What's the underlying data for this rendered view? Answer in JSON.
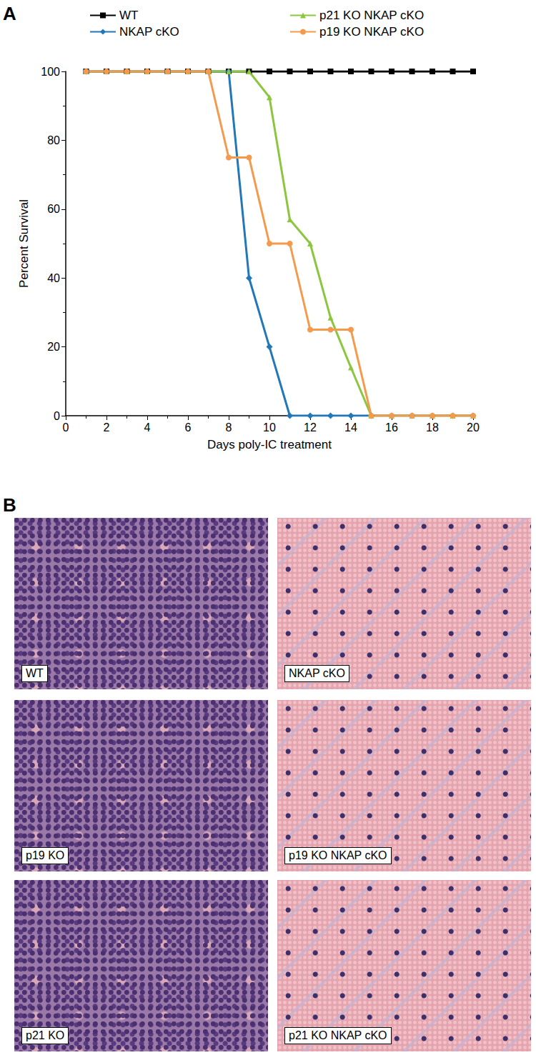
{
  "chart_data": {
    "type": "line",
    "x": [
      1,
      2,
      3,
      4,
      5,
      6,
      7,
      8,
      9,
      10,
      11,
      12,
      13,
      14,
      15,
      16,
      17,
      18,
      19,
      20
    ],
    "xlabel": "Days poly-IC treatment",
    "ylabel": "Percent Survival",
    "xlim": [
      0,
      20
    ],
    "xticks": [
      0,
      2,
      4,
      6,
      8,
      10,
      12,
      14,
      16,
      18,
      20
    ],
    "ylim": [
      0,
      100
    ],
    "yticks": [
      0,
      20,
      40,
      60,
      80,
      100
    ],
    "grid": false,
    "legend": "top",
    "series": [
      {
        "name": "WT",
        "color": "#000000",
        "marker": "square",
        "values": [
          100,
          100,
          100,
          100,
          100,
          100,
          100,
          100,
          100,
          100,
          100,
          100,
          100,
          100,
          100,
          100,
          100,
          100,
          100,
          100
        ]
      },
      {
        "name": "NKAP cKO",
        "color": "#2277b8",
        "marker": "diamond",
        "values": [
          100,
          100,
          100,
          100,
          100,
          100,
          100,
          100,
          40,
          20,
          0,
          0,
          0,
          0,
          0,
          0,
          0,
          0,
          0,
          0
        ]
      },
      {
        "name": "p21 KO NKAP cKO",
        "color": "#8cc63e",
        "marker": "triangle",
        "values": [
          100,
          100,
          100,
          100,
          100,
          100,
          100,
          100,
          100,
          92.5,
          57,
          50,
          28.5,
          14,
          0,
          0,
          0,
          0,
          0,
          0
        ]
      },
      {
        "name": "p19 KO NKAP cKO",
        "color": "#f59a4c",
        "marker": "circle",
        "values": [
          100,
          100,
          100,
          100,
          100,
          100,
          100,
          75,
          75,
          50,
          50,
          25,
          25,
          25,
          0,
          0,
          0,
          0,
          0,
          0
        ]
      }
    ]
  },
  "figure": {
    "panels": [
      {
        "label": "A"
      },
      {
        "label": "B",
        "images": [
          "WT",
          "NKAP cKO",
          "p19 KO",
          "p19 KO NKAP cKO",
          "p21 KO",
          "p21 KO NKAP cKO"
        ]
      }
    ]
  }
}
